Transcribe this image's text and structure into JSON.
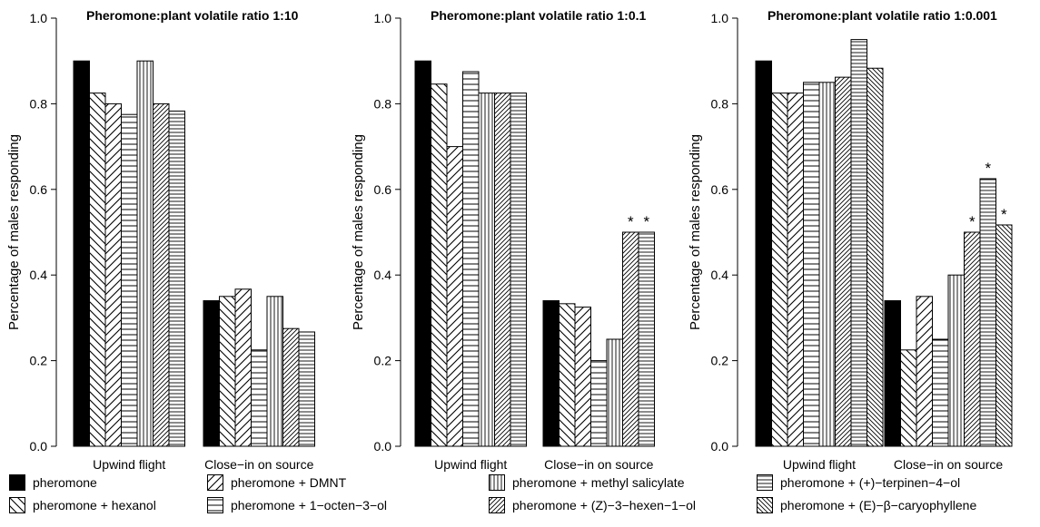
{
  "chart_data": [
    {
      "type": "bar",
      "title": "Pheromone:plant volatile ratio 1:10",
      "ylabel": "Percentage of males responding",
      "xlabel": "",
      "ylim": [
        0,
        1
      ],
      "yticks": [
        "0.0",
        "0.2",
        "0.4",
        "0.6",
        "0.8",
        "1.0"
      ],
      "categories": [
        "Upwind flight",
        "Close−in on source"
      ],
      "series": [
        {
          "name": "pheromone",
          "values": [
            0.9,
            0.34
          ]
        },
        {
          "name": "pheromone + hexanol",
          "values": [
            0.825,
            0.35
          ]
        },
        {
          "name": "pheromone + DMNT",
          "values": [
            0.8,
            0.367
          ]
        },
        {
          "name": "pheromone + 1−octen−3−ol",
          "values": [
            0.775,
            0.225
          ]
        },
        {
          "name": "pheromone + methyl salicylate",
          "values": [
            0.9,
            0.35
          ]
        },
        {
          "name": "pheromone + (Z)−3−hexen−1−ol",
          "values": [
            0.8,
            0.275
          ]
        },
        {
          "name": "pheromone + (+)−terpinen−4−ol",
          "values": [
            0.783,
            0.267
          ]
        }
      ],
      "annotations": [
        [
          "",
          ""
        ],
        [
          "",
          ""
        ],
        [
          "",
          ""
        ],
        [
          "",
          ""
        ],
        [
          "",
          ""
        ],
        [
          "",
          ""
        ],
        [
          "",
          ""
        ]
      ]
    },
    {
      "type": "bar",
      "title": "Pheromone:plant volatile ratio 1:0.1",
      "ylabel": "Percentage of males responding",
      "xlabel": "",
      "ylim": [
        0,
        1
      ],
      "yticks": [
        "0.0",
        "0.2",
        "0.4",
        "0.6",
        "0.8",
        "1.0"
      ],
      "categories": [
        "Upwind flight",
        "Close−in on source"
      ],
      "series": [
        {
          "name": "pheromone",
          "values": [
            0.9,
            0.34
          ]
        },
        {
          "name": "pheromone + hexanol",
          "values": [
            0.846,
            0.333
          ]
        },
        {
          "name": "pheromone + DMNT",
          "values": [
            0.7,
            0.325
          ]
        },
        {
          "name": "pheromone + 1−octen−3−ol",
          "values": [
            0.875,
            0.2
          ]
        },
        {
          "name": "pheromone + methyl salicylate",
          "values": [
            0.825,
            0.25
          ]
        },
        {
          "name": "pheromone + (Z)−3−hexen−1−ol",
          "values": [
            0.825,
            0.5
          ]
        },
        {
          "name": "pheromone + (+)−terpinen−4−ol",
          "values": [
            0.825,
            0.5
          ]
        }
      ],
      "annotations": [
        [
          "",
          ""
        ],
        [
          "",
          ""
        ],
        [
          "",
          ""
        ],
        [
          "",
          ""
        ],
        [
          "",
          ""
        ],
        [
          "",
          "*"
        ],
        [
          "",
          "*"
        ]
      ]
    },
    {
      "type": "bar",
      "title": "Pheromone:plant volatile ratio 1:0.001",
      "ylabel": "Percentage of males responding",
      "xlabel": "",
      "ylim": [
        0,
        1
      ],
      "yticks": [
        "0.0",
        "0.2",
        "0.4",
        "0.6",
        "0.8",
        "1.0"
      ],
      "categories": [
        "Upwind flight",
        "Close−in on source"
      ],
      "series": [
        {
          "name": "pheromone",
          "values": [
            0.9,
            0.34
          ]
        },
        {
          "name": "pheromone + hexanol",
          "values": [
            0.825,
            0.225
          ]
        },
        {
          "name": "pheromone + DMNT",
          "values": [
            0.825,
            0.35
          ]
        },
        {
          "name": "pheromone + 1−octen−3−ol",
          "values": [
            0.85,
            0.25
          ]
        },
        {
          "name": "pheromone + methyl salicylate",
          "values": [
            0.85,
            0.4
          ]
        },
        {
          "name": "pheromone + (Z)−3−hexen−1−ol",
          "values": [
            0.862,
            0.5
          ]
        },
        {
          "name": "pheromone + (+)−terpinen−4−ol",
          "values": [
            0.95,
            0.625
          ]
        },
        {
          "name": "pheromone + (E)−β−caryophyllene",
          "values": [
            0.883,
            0.517
          ]
        }
      ],
      "annotations": [
        [
          "",
          ""
        ],
        [
          "",
          ""
        ],
        [
          "",
          ""
        ],
        [
          "",
          ""
        ],
        [
          "",
          ""
        ],
        [
          "",
          "*"
        ],
        [
          "",
          "*"
        ],
        [
          "",
          "*"
        ]
      ]
    }
  ],
  "legend": {
    "items": [
      {
        "label": "pheromone",
        "pattern": "solid"
      },
      {
        "label": "pheromone + DMNT",
        "pattern": "diag-up"
      },
      {
        "label": "pheromone + methyl salicylate",
        "pattern": "vertical"
      },
      {
        "label": "pheromone + (+)−terpinen−4−ol",
        "pattern": "horizontal-fine"
      },
      {
        "label": "pheromone + hexanol",
        "pattern": "diag-down"
      },
      {
        "label": "pheromone + 1−octen−3−ol",
        "pattern": "horizontal"
      },
      {
        "label": "pheromone + (Z)−3−hexen−1−ol",
        "pattern": "diag-up-fine"
      },
      {
        "label": "pheromone + (E)−β−caryophyllene",
        "pattern": "diag-down-fine"
      }
    ]
  },
  "series_patterns": [
    "solid",
    "diag-down",
    "diag-up",
    "horizontal",
    "vertical",
    "diag-up-fine",
    "horizontal-fine",
    "diag-down-fine"
  ],
  "colors": {
    "fill_solid": "#000000",
    "stroke": "#000000",
    "background": "#ffffff"
  }
}
